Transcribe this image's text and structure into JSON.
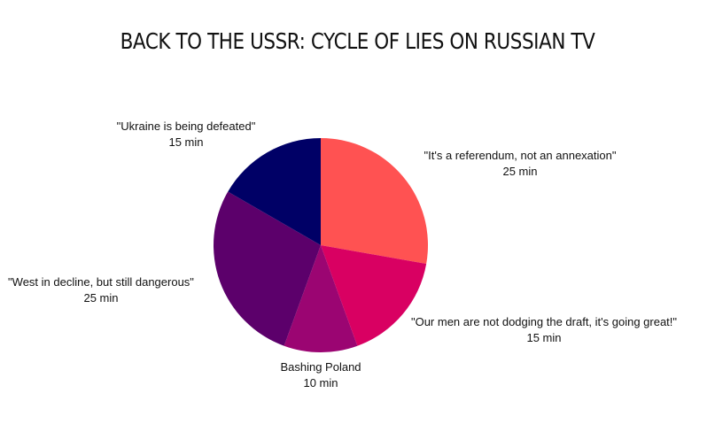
{
  "chart_data": {
    "type": "pie",
    "title": "BACK TO THE USSR: CYCLE OF LIES ON RUSSIAN TV",
    "unit": "min",
    "start_angle": "12 o'clock",
    "direction": "clockwise",
    "slices": [
      {
        "label": "\"It's a referendum, not an annexation\"",
        "value": 25,
        "value_text": "25 min",
        "color": "#ff5252"
      },
      {
        "label": "\"Our men are not dodging the draft, it's going great!\"",
        "value": 15,
        "value_text": "15 min",
        "color": "#d90062"
      },
      {
        "label": "Bashing Poland",
        "value": 10,
        "value_text": "10 min",
        "color": "#9b0572"
      },
      {
        "label": "\"West in decline, but still dangerous\"",
        "value": 25,
        "value_text": "25 min",
        "color": "#5c006b"
      },
      {
        "label": "\"Ukraine is being defeated\"",
        "value": 15,
        "value_text": "15 min",
        "color": "#000066"
      }
    ]
  }
}
